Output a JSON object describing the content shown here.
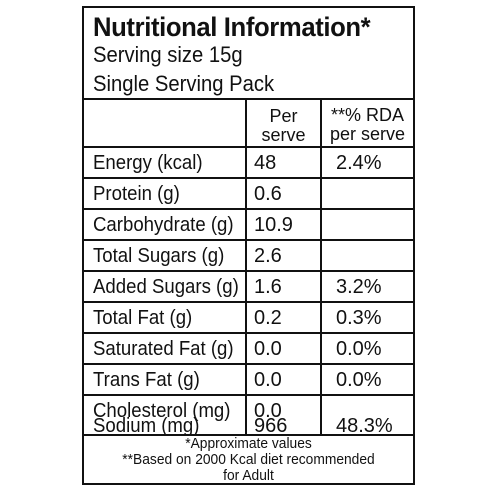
{
  "header": {
    "title": "Nutritional Information*",
    "serving_size": "Serving size 15g",
    "pack": "Single Serving Pack"
  },
  "columns": {
    "per_serve_line1": "Per",
    "per_serve_line2": "serve",
    "rda_line1": "**% RDA",
    "rda_line2": "per serve"
  },
  "rows": [
    {
      "name": "Energy (kcal)",
      "per_serve": "48",
      "rda": "2.4%"
    },
    {
      "name": "Protein (g)",
      "per_serve": "0.6",
      "rda": ""
    },
    {
      "name": "Carbohydrate (g)",
      "per_serve": "10.9",
      "rda": ""
    },
    {
      "name": "Total Sugars (g)",
      "per_serve": "2.6",
      "rda": ""
    },
    {
      "name": "Added Sugars (g)",
      "per_serve": "1.6",
      "rda": "3.2%"
    },
    {
      "name": "Total Fat (g)",
      "per_serve": "0.2",
      "rda": "0.3%"
    },
    {
      "name": "Saturated Fat (g)",
      "per_serve": "0.0",
      "rda": "0.0%"
    },
    {
      "name": "Trans Fat (g)",
      "per_serve": "0.0",
      "rda": "0.0%"
    },
    {
      "name": "Cholesterol (mg)",
      "per_serve": "0.0",
      "rda": ""
    },
    {
      "name": "Sodium (mg)",
      "per_serve": "966",
      "rda": "48.3%"
    }
  ],
  "footnotes": {
    "approx": "*Approximate values",
    "based_line1": "**Based on 2000 Kcal diet recommended",
    "based_line2": "for Adult"
  }
}
